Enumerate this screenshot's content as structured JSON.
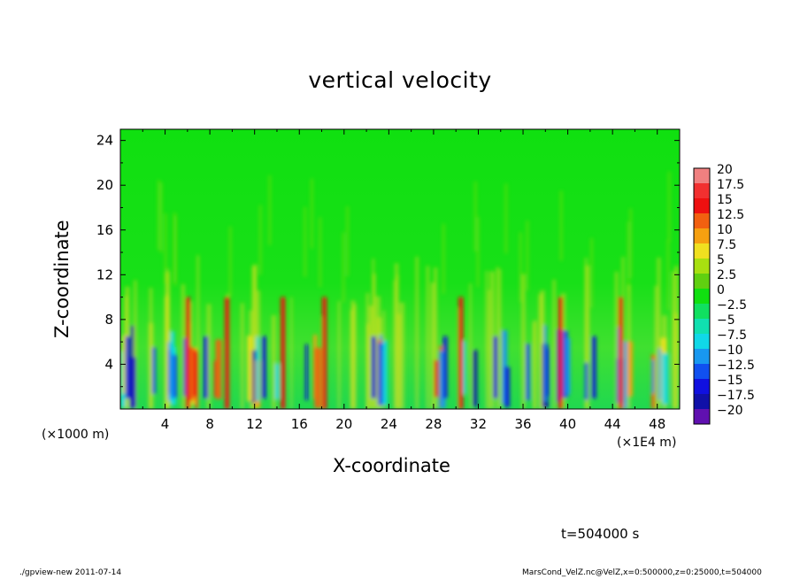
{
  "chart_data": {
    "type": "heatmap",
    "title": "vertical velocity",
    "xlabel": "X-coordinate",
    "ylabel": "Z-coordinate",
    "x_unit_note": "(×1E4 m)",
    "y_unit_note": "(×1000 m)",
    "x_ticks": [
      "4",
      "8",
      "12",
      "16",
      "20",
      "24",
      "28",
      "32",
      "36",
      "40",
      "44",
      "48"
    ],
    "y_ticks": [
      "4",
      "8",
      "12",
      "16",
      "20",
      "24"
    ],
    "xlim": [
      0,
      50
    ],
    "ylim": [
      0,
      25
    ],
    "colorbar_labels": [
      "20",
      "17.5",
      "15",
      "12.5",
      "10",
      "7.5",
      "5",
      "2.5",
      "0",
      "−2.5",
      "−5",
      "−7.5",
      "−10",
      "−12.5",
      "−15",
      "−17.5",
      "−20"
    ],
    "colorbar_colors": [
      "#f08080",
      "#f23030",
      "#ee1010",
      "#f26010",
      "#f6a010",
      "#f0e020",
      "#a8e010",
      "#60d010",
      "#10e010",
      "#10e060",
      "#10e0b0",
      "#10d8e8",
      "#1898f0",
      "#1050f0",
      "#1010e0",
      "#1010a8",
      "#6010b0"
    ],
    "annotation": "t=504000 s",
    "footer_left": "./gpview-new   2011-07-14",
    "footer_right": "MarsCond_VelZ.nc@VelZ,x=0:500000,z=0:25000,t=504000"
  }
}
